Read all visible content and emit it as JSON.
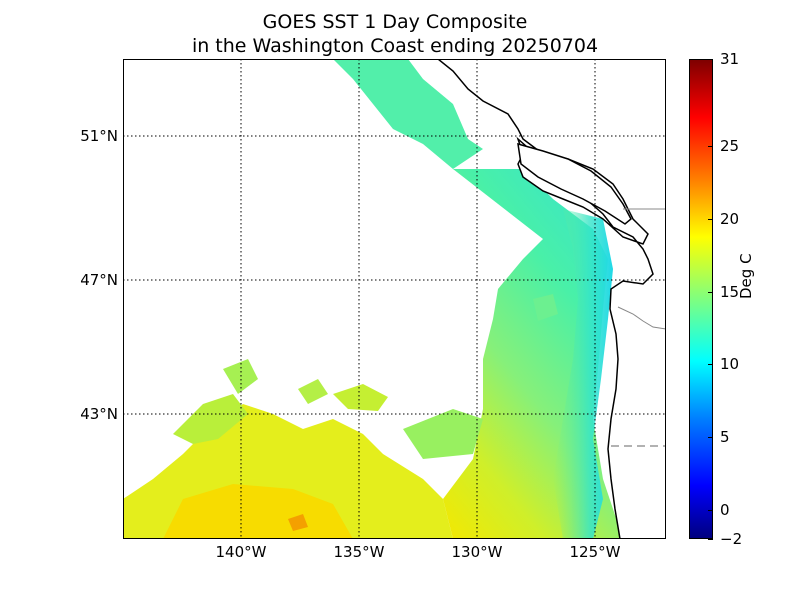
{
  "title": {
    "line1": "GOES SST 1 Day Composite",
    "line2": "in the Washington Coast ending 20250704"
  },
  "map": {
    "lat_range": [
      38.9,
      53.5
    ],
    "lon_range": [
      -145.0,
      -122.0
    ],
    "lat_ticks": [
      {
        "value": 51,
        "label": "51°N"
      },
      {
        "value": 47,
        "label": "47°N"
      },
      {
        "value": 43,
        "label": "43°N"
      }
    ],
    "lon_ticks": [
      {
        "value": -140,
        "label": "140°W"
      },
      {
        "value": -135,
        "label": "135°W"
      },
      {
        "value": -130,
        "label": "130°W"
      },
      {
        "value": -125,
        "label": "125°W"
      }
    ],
    "gridlines": "dotted",
    "land_color": "#ffffff",
    "coastline_color": "#000000",
    "border_color": "#888888",
    "cloud_mask_color": "#ffffff"
  },
  "colorbar": {
    "label": "Deg C",
    "min": -2,
    "max": 31,
    "colormap": "jet",
    "ticks": [
      {
        "value": 31,
        "label": "31"
      },
      {
        "value": 25,
        "label": "25"
      },
      {
        "value": 20,
        "label": "20"
      },
      {
        "value": 15,
        "label": "15"
      },
      {
        "value": 10,
        "label": "10"
      },
      {
        "value": 5,
        "label": "5"
      },
      {
        "value": 0,
        "label": "0"
      },
      {
        "value": -2,
        "label": "−2"
      }
    ]
  }
}
